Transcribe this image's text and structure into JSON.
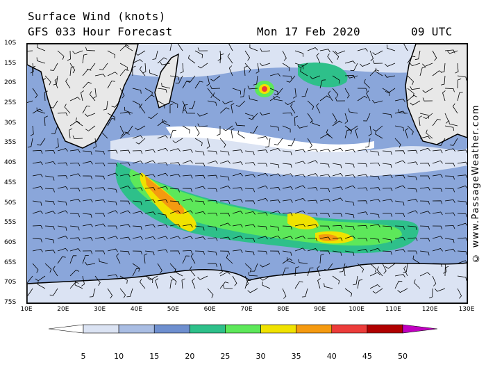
{
  "title": {
    "line1": "Surface Wind (knots)",
    "line2": "GFS 033 Hour Forecast",
    "date": "Mon 17 Feb 2020",
    "time": "09 UTC"
  },
  "credit": "© www.PassageWeather.com",
  "latitude_labels": [
    "10S",
    "15S",
    "20S",
    "25S",
    "30S",
    "35S",
    "40S",
    "45S",
    "50S",
    "55S",
    "60S",
    "65S",
    "70S",
    "75S"
  ],
  "longitude_labels": [
    "10E",
    "20E",
    "30E",
    "40E",
    "50E",
    "60E",
    "70E",
    "80E",
    "90E",
    "100E",
    "110E",
    "120E",
    "130E"
  ],
  "legend": {
    "ticks": [
      "5",
      "10",
      "15",
      "20",
      "25",
      "30",
      "35",
      "40",
      "45",
      "50"
    ],
    "colors": [
      "#ffffff",
      "#dbe3f3",
      "#a9bde3",
      "#6e8fcf",
      "#2ec08a",
      "#5de85a",
      "#f0e200",
      "#f59a10",
      "#ec3c3a",
      "#b00000",
      "#c000c0"
    ]
  },
  "map_colors": {
    "land": "#e8e8e8",
    "ocean_base": "#8aa6da"
  }
}
